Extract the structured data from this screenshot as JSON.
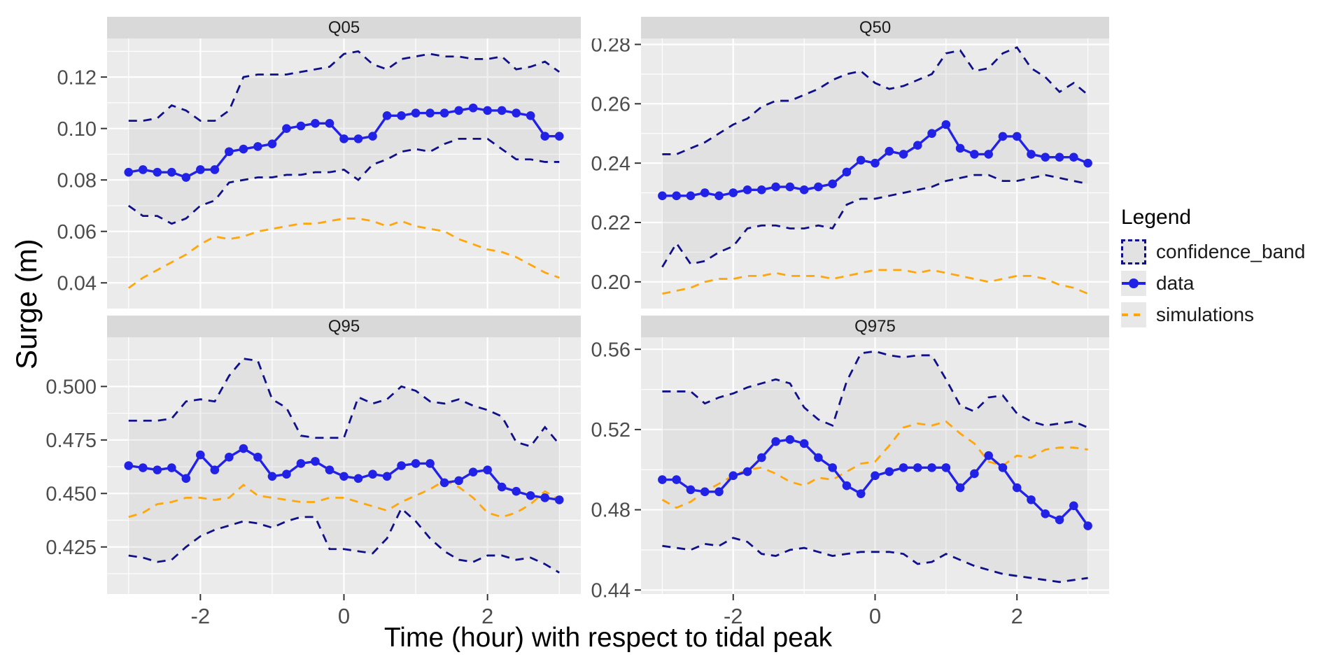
{
  "axes": {
    "y_title": "Surge (m)",
    "x_title": "Time (hour) with respect to tidal peak"
  },
  "legend": {
    "title": "Legend",
    "items": [
      {
        "label": "confidence_band",
        "type": "band"
      },
      {
        "label": "data",
        "type": "line-point"
      },
      {
        "label": "simulations",
        "type": "dashed-line"
      }
    ]
  },
  "colors": {
    "data_line": "#2222E6",
    "confidence_band_line": "#10108A",
    "simulations_line": "#FFA60A",
    "band_fill": "#C9C9C9",
    "panel_background": "#EBEBEB",
    "strip_background": "#D9D9D9",
    "gridline": "#FFFFFF",
    "tick_text": "#4D4D4D",
    "tick_mark": "#333333"
  },
  "x_axis": {
    "xlim": [
      -3.3,
      3.3
    ],
    "major_ticks": [
      -2,
      0,
      2
    ],
    "tick_labels": [
      "-2",
      "0",
      "2"
    ],
    "minor_ticks": [
      -3,
      -1,
      1,
      3
    ]
  },
  "x_hours": [
    -3.0,
    -2.8,
    -2.6,
    -2.4,
    -2.2,
    -2.0,
    -1.8,
    -1.6,
    -1.4,
    -1.2,
    -1.0,
    -0.8,
    -0.6,
    -0.4,
    -0.2,
    0.0,
    0.2,
    0.4,
    0.6,
    0.8,
    1.0,
    1.2,
    1.4,
    1.6,
    1.8,
    2.0,
    2.2,
    2.4,
    2.6,
    2.8,
    3.0
  ],
  "chart_data": [
    {
      "panel": "Q05",
      "type": "line",
      "ylim": [
        0.03,
        0.135
      ],
      "yticks": {
        "values": [
          0.04,
          0.06,
          0.08,
          0.1,
          0.12
        ],
        "labels": [
          "0.04",
          "0.06",
          "0.08",
          "0.10",
          "0.12"
        ]
      },
      "y_minor": [
        0.03,
        0.05,
        0.07,
        0.09,
        0.11,
        0.13
      ],
      "series": {
        "data": [
          0.083,
          0.084,
          0.083,
          0.083,
          0.081,
          0.084,
          0.084,
          0.091,
          0.092,
          0.093,
          0.094,
          0.1,
          0.101,
          0.102,
          0.102,
          0.096,
          0.096,
          0.097,
          0.105,
          0.105,
          0.106,
          0.106,
          0.106,
          0.107,
          0.108,
          0.107,
          0.107,
          0.106,
          0.105,
          0.097,
          0.097
        ],
        "confidence_upper": [
          0.103,
          0.103,
          0.104,
          0.109,
          0.107,
          0.103,
          0.103,
          0.107,
          0.12,
          0.121,
          0.121,
          0.121,
          0.122,
          0.123,
          0.124,
          0.129,
          0.13,
          0.125,
          0.123,
          0.127,
          0.128,
          0.129,
          0.128,
          0.128,
          0.127,
          0.127,
          0.128,
          0.123,
          0.124,
          0.126,
          0.122
        ],
        "confidence_lower": [
          0.07,
          0.066,
          0.066,
          0.063,
          0.065,
          0.07,
          0.072,
          0.079,
          0.08,
          0.081,
          0.081,
          0.082,
          0.082,
          0.083,
          0.083,
          0.084,
          0.08,
          0.086,
          0.088,
          0.091,
          0.092,
          0.091,
          0.094,
          0.096,
          0.096,
          0.096,
          0.092,
          0.088,
          0.088,
          0.087,
          0.087
        ],
        "simulations": [
          0.038,
          0.042,
          0.045,
          0.048,
          0.051,
          0.055,
          0.058,
          0.057,
          0.058,
          0.06,
          0.061,
          0.062,
          0.063,
          0.063,
          0.064,
          0.065,
          0.065,
          0.064,
          0.062,
          0.064,
          0.062,
          0.061,
          0.06,
          0.057,
          0.055,
          0.053,
          0.052,
          0.05,
          0.047,
          0.044,
          0.042
        ]
      }
    },
    {
      "panel": "Q50",
      "type": "line",
      "ylim": [
        0.191,
        0.282
      ],
      "yticks": {
        "values": [
          0.2,
          0.22,
          0.24,
          0.26,
          0.28
        ],
        "labels": [
          "0.20",
          "0.22",
          "0.24",
          "0.26",
          "0.28"
        ]
      },
      "y_minor": [
        0.21,
        0.23,
        0.25,
        0.27
      ],
      "series": {
        "data": [
          0.229,
          0.229,
          0.229,
          0.23,
          0.229,
          0.23,
          0.231,
          0.231,
          0.232,
          0.232,
          0.231,
          0.232,
          0.233,
          0.237,
          0.241,
          0.24,
          0.244,
          0.243,
          0.246,
          0.25,
          0.253,
          0.245,
          0.243,
          0.243,
          0.249,
          0.249,
          0.243,
          0.242,
          0.242,
          0.242,
          0.24
        ],
        "confidence_upper": [
          0.243,
          0.243,
          0.245,
          0.247,
          0.25,
          0.253,
          0.255,
          0.259,
          0.261,
          0.261,
          0.263,
          0.265,
          0.268,
          0.27,
          0.271,
          0.267,
          0.265,
          0.266,
          0.268,
          0.27,
          0.277,
          0.278,
          0.271,
          0.272,
          0.277,
          0.279,
          0.272,
          0.269,
          0.264,
          0.267,
          0.263
        ],
        "confidence_lower": [
          0.205,
          0.213,
          0.206,
          0.207,
          0.21,
          0.212,
          0.218,
          0.219,
          0.219,
          0.218,
          0.218,
          0.219,
          0.218,
          0.226,
          0.228,
          0.228,
          0.229,
          0.23,
          0.231,
          0.232,
          0.234,
          0.235,
          0.236,
          0.236,
          0.234,
          0.234,
          0.235,
          0.236,
          0.235,
          0.234,
          0.233
        ],
        "simulations": [
          0.196,
          0.197,
          0.198,
          0.2,
          0.201,
          0.201,
          0.202,
          0.202,
          0.203,
          0.202,
          0.202,
          0.202,
          0.201,
          0.202,
          0.203,
          0.204,
          0.204,
          0.204,
          0.203,
          0.204,
          0.203,
          0.202,
          0.201,
          0.2,
          0.201,
          0.202,
          0.202,
          0.201,
          0.199,
          0.198,
          0.196
        ]
      }
    },
    {
      "panel": "Q95",
      "type": "line",
      "ylim": [
        0.403,
        0.523
      ],
      "yticks": {
        "values": [
          0.425,
          0.45,
          0.475,
          0.5
        ],
        "labels": [
          "0.425",
          "0.450",
          "0.475",
          "0.500"
        ]
      },
      "y_minor": [
        0.4125,
        0.4375,
        0.4625,
        0.4875,
        0.5125
      ],
      "series": {
        "data": [
          0.463,
          0.462,
          0.461,
          0.462,
          0.457,
          0.468,
          0.461,
          0.467,
          0.471,
          0.467,
          0.458,
          0.459,
          0.464,
          0.465,
          0.461,
          0.458,
          0.457,
          0.459,
          0.458,
          0.463,
          0.464,
          0.464,
          0.455,
          0.456,
          0.46,
          0.461,
          0.453,
          0.451,
          0.449,
          0.448,
          0.447
        ],
        "confidence_upper": [
          0.484,
          0.484,
          0.484,
          0.485,
          0.493,
          0.494,
          0.493,
          0.505,
          0.513,
          0.512,
          0.494,
          0.49,
          0.477,
          0.476,
          0.476,
          0.476,
          0.495,
          0.492,
          0.494,
          0.5,
          0.498,
          0.493,
          0.492,
          0.494,
          0.491,
          0.489,
          0.486,
          0.474,
          0.472,
          0.481,
          0.473
        ],
        "confidence_lower": [
          0.421,
          0.42,
          0.418,
          0.419,
          0.425,
          0.43,
          0.433,
          0.435,
          0.437,
          0.436,
          0.434,
          0.437,
          0.439,
          0.439,
          0.424,
          0.424,
          0.423,
          0.422,
          0.429,
          0.443,
          0.437,
          0.429,
          0.423,
          0.419,
          0.418,
          0.421,
          0.421,
          0.419,
          0.42,
          0.417,
          0.413
        ],
        "simulations": [
          0.439,
          0.441,
          0.445,
          0.446,
          0.448,
          0.448,
          0.447,
          0.448,
          0.454,
          0.449,
          0.448,
          0.447,
          0.446,
          0.446,
          0.448,
          0.448,
          0.446,
          0.444,
          0.442,
          0.446,
          0.449,
          0.452,
          0.456,
          0.453,
          0.448,
          0.441,
          0.439,
          0.441,
          0.445,
          0.451,
          0.447
        ]
      }
    },
    {
      "panel": "Q975",
      "type": "line",
      "ylim": [
        0.438,
        0.566
      ],
      "yticks": {
        "values": [
          0.44,
          0.48,
          0.52,
          0.56
        ],
        "labels": [
          "0.44",
          "0.48",
          "0.52",
          "0.56"
        ]
      },
      "y_minor": [
        0.46,
        0.5,
        0.54
      ],
      "series": {
        "data": [
          0.495,
          0.495,
          0.49,
          0.489,
          0.489,
          0.497,
          0.499,
          0.506,
          0.514,
          0.515,
          0.513,
          0.506,
          0.501,
          0.492,
          0.488,
          0.497,
          0.499,
          0.501,
          0.501,
          0.501,
          0.501,
          0.491,
          0.498,
          0.507,
          0.501,
          0.491,
          0.485,
          0.478,
          0.475,
          0.482,
          0.472
        ],
        "confidence_upper": [
          0.539,
          0.539,
          0.539,
          0.533,
          0.536,
          0.538,
          0.541,
          0.543,
          0.545,
          0.543,
          0.531,
          0.525,
          0.522,
          0.544,
          0.558,
          0.559,
          0.557,
          0.556,
          0.557,
          0.557,
          0.545,
          0.532,
          0.529,
          0.536,
          0.537,
          0.528,
          0.524,
          0.522,
          0.523,
          0.524,
          0.521
        ],
        "confidence_lower": [
          0.462,
          0.461,
          0.46,
          0.463,
          0.462,
          0.466,
          0.464,
          0.458,
          0.457,
          0.46,
          0.461,
          0.459,
          0.457,
          0.458,
          0.459,
          0.459,
          0.459,
          0.458,
          0.453,
          0.454,
          0.458,
          0.455,
          0.452,
          0.45,
          0.448,
          0.447,
          0.446,
          0.445,
          0.444,
          0.445,
          0.446
        ],
        "simulations": [
          0.485,
          0.481,
          0.484,
          0.489,
          0.493,
          0.497,
          0.5,
          0.501,
          0.498,
          0.494,
          0.492,
          0.496,
          0.495,
          0.499,
          0.503,
          0.504,
          0.512,
          0.521,
          0.523,
          0.522,
          0.524,
          0.518,
          0.513,
          0.504,
          0.502,
          0.507,
          0.506,
          0.51,
          0.511,
          0.511,
          0.51
        ]
      }
    }
  ]
}
